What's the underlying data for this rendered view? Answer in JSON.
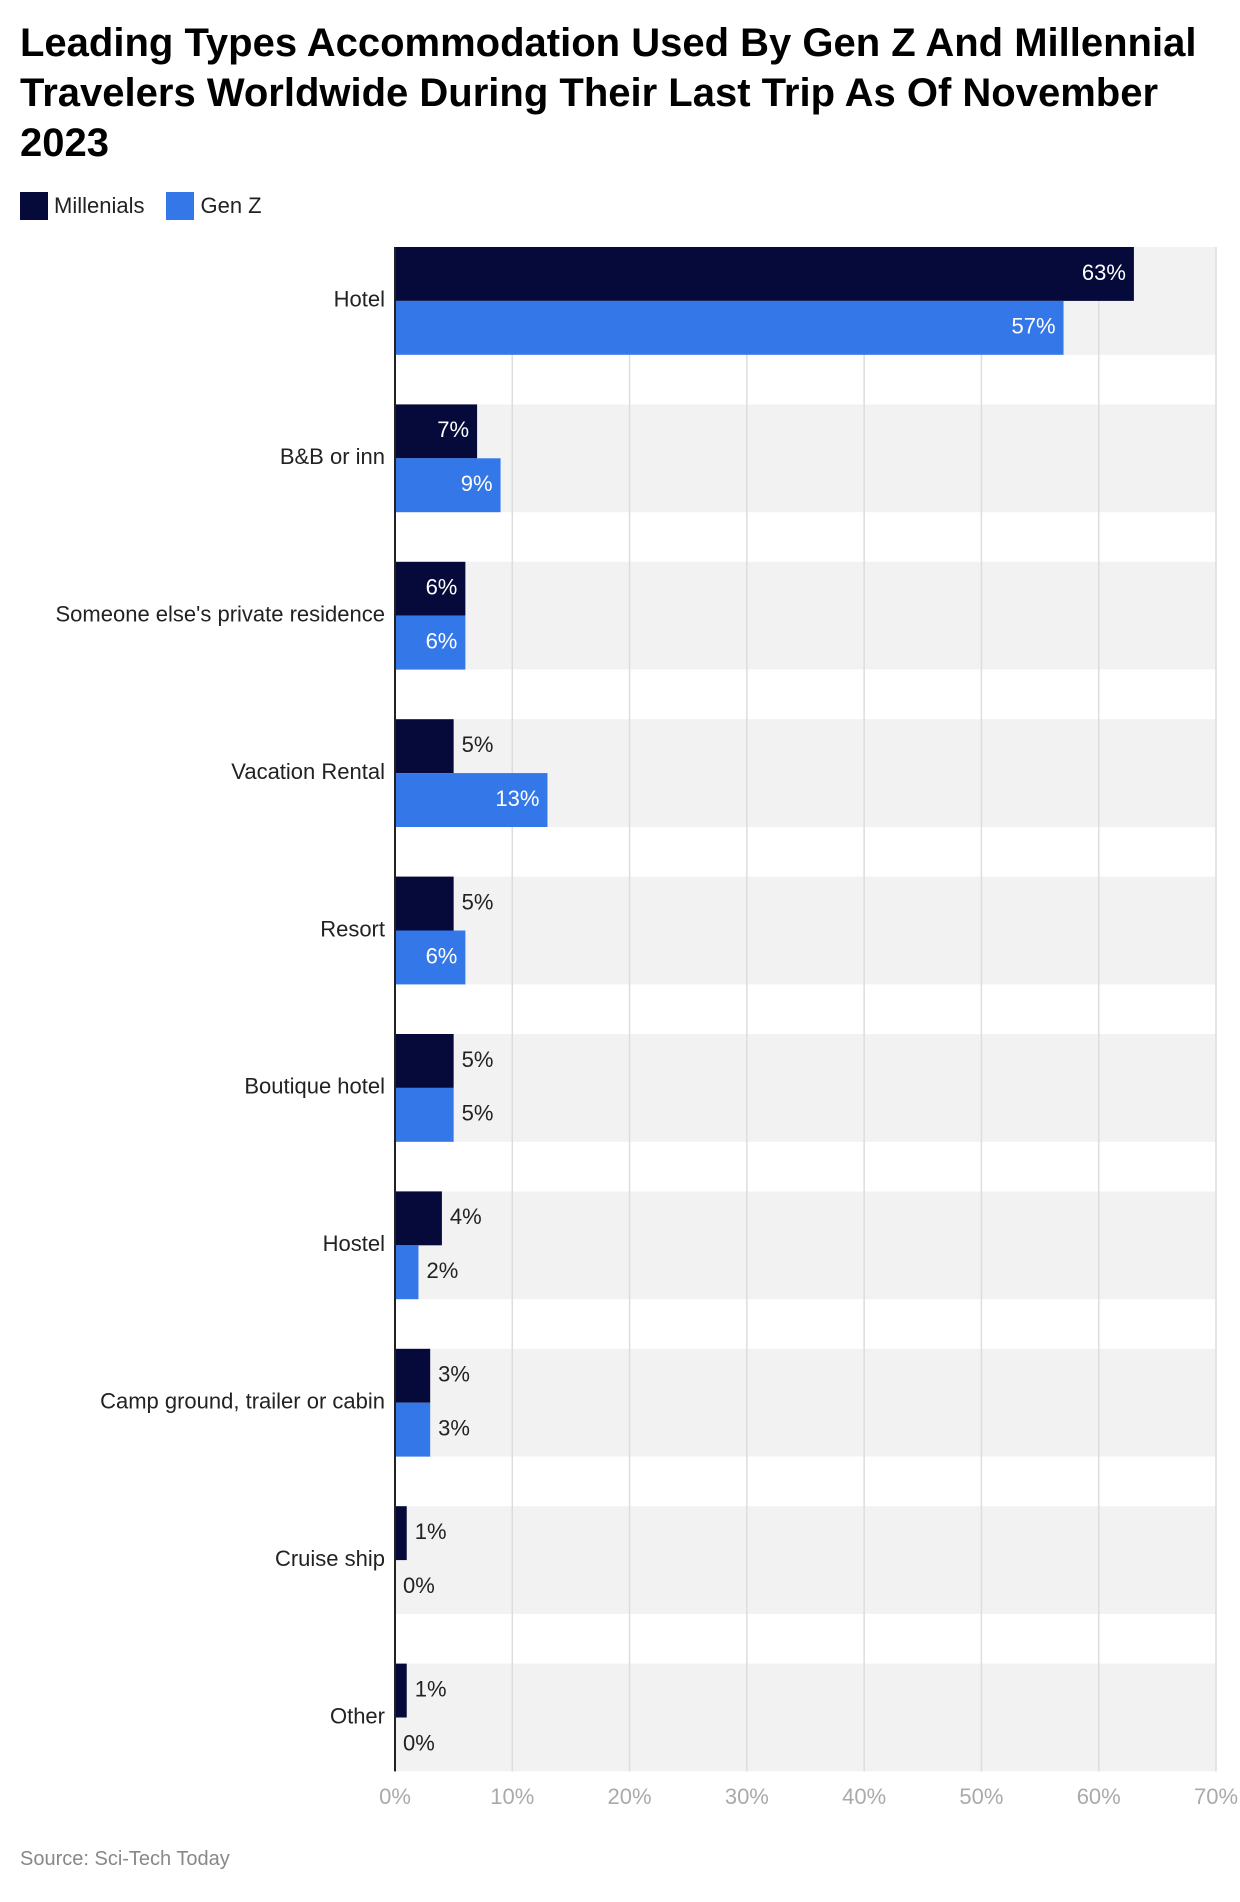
{
  "chart_data": {
    "type": "hbar",
    "title": "Leading Types Accommodation Used By Gen Z And Millennial Travelers Worldwide During Their Last Trip As Of November 2023",
    "categories": [
      "Hotel",
      "B&B or inn",
      "Someone else's private residence",
      "Vacation Rental",
      "Resort",
      "Boutique hotel",
      "Hostel",
      "Camp ground, trailer or cabin",
      "Cruise ship",
      "Other"
    ],
    "series": [
      {
        "name": "Millenials",
        "color": "#050a3a",
        "values": [
          63,
          7,
          6,
          5,
          5,
          5,
          4,
          3,
          1,
          1
        ],
        "value_labels": [
          "63%",
          "7%",
          "6%",
          "5%",
          "5%",
          "5%",
          "4%",
          "3%",
          "1%",
          "1%"
        ]
      },
      {
        "name": "Gen Z",
        "color": "#3377e8",
        "values": [
          57,
          9,
          6,
          13,
          6,
          5,
          2,
          3,
          0,
          0
        ],
        "value_labels": [
          "57%",
          "9%",
          "6%",
          "13%",
          "6%",
          "5%",
          "2%",
          "3%",
          "0%",
          "0%"
        ]
      }
    ],
    "xlim": [
      0,
      70
    ],
    "xticks": [
      {
        "value": 0,
        "label": "0%"
      },
      {
        "value": 10,
        "label": "10%"
      },
      {
        "value": 20,
        "label": "20%"
      },
      {
        "value": 30,
        "label": "30%"
      },
      {
        "value": 40,
        "label": "40%"
      },
      {
        "value": 50,
        "label": "50%"
      },
      {
        "value": 60,
        "label": "60%"
      },
      {
        "value": 70,
        "label": "70%"
      }
    ],
    "grid": true,
    "legend": "top-left",
    "source": "Source: Sci-Tech Today"
  }
}
